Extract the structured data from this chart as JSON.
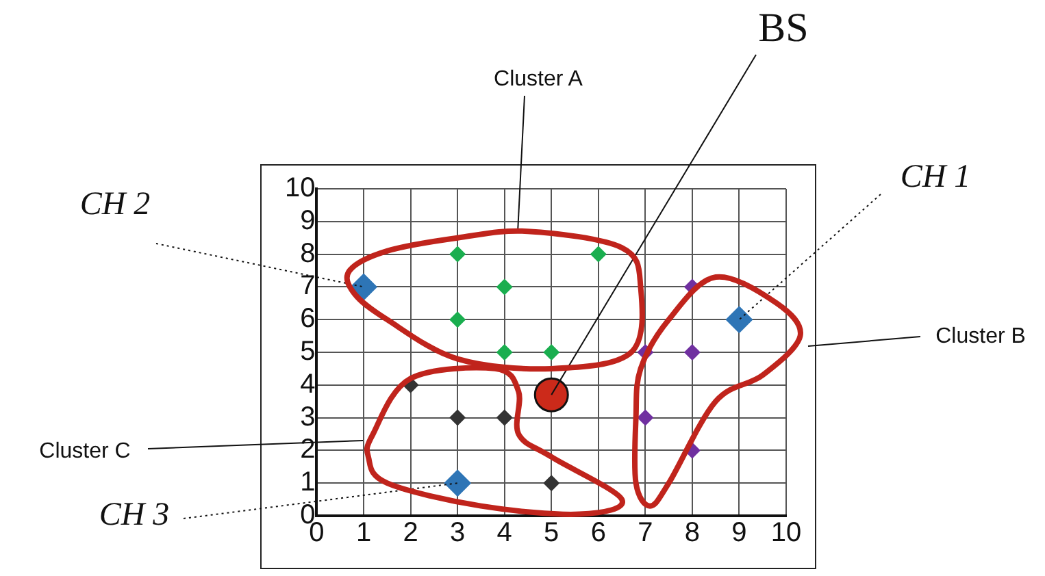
{
  "chart_data": {
    "type": "scatter",
    "xlim": [
      0,
      10
    ],
    "ylim": [
      0,
      10
    ],
    "xticks": [
      0,
      1,
      2,
      3,
      4,
      5,
      6,
      7,
      8,
      9,
      10
    ],
    "yticks": [
      0,
      1,
      2,
      3,
      4,
      5,
      6,
      7,
      8,
      9,
      10
    ],
    "grid": true,
    "legend": false,
    "marker": "diamond",
    "series": [
      {
        "color": "#1aae4f",
        "x": [
          3,
          6,
          4,
          3,
          4,
          5
        ],
        "values": [
          8,
          8,
          7,
          6,
          5,
          5
        ]
      },
      {
        "color": "#7030a0",
        "x": [
          8,
          7,
          8,
          7,
          8
        ],
        "values": [
          7,
          5,
          5,
          3,
          2
        ]
      },
      {
        "color": "#333333",
        "x": [
          2,
          3,
          4,
          5
        ],
        "values": [
          4,
          3,
          3,
          1
        ]
      },
      {
        "color": "#2e75b6",
        "x": [
          1,
          9,
          3
        ],
        "values": [
          7,
          6,
          1
        ]
      },
      {
        "color": "#cc2a1a",
        "marker": "circle",
        "x": [
          5
        ],
        "values": [
          3.7
        ]
      }
    ],
    "annotations": [
      "Cluster A",
      "Cluster B",
      "Cluster C",
      {
        "text": "BS",
        "x": 5,
        "y": 3.7
      },
      {
        "text": "CH 1",
        "x": 9,
        "y": 6
      },
      {
        "text": "CH 2",
        "x": 1,
        "y": 7
      },
      {
        "text": "CH 3",
        "x": 3,
        "y": 1
      }
    ]
  }
}
